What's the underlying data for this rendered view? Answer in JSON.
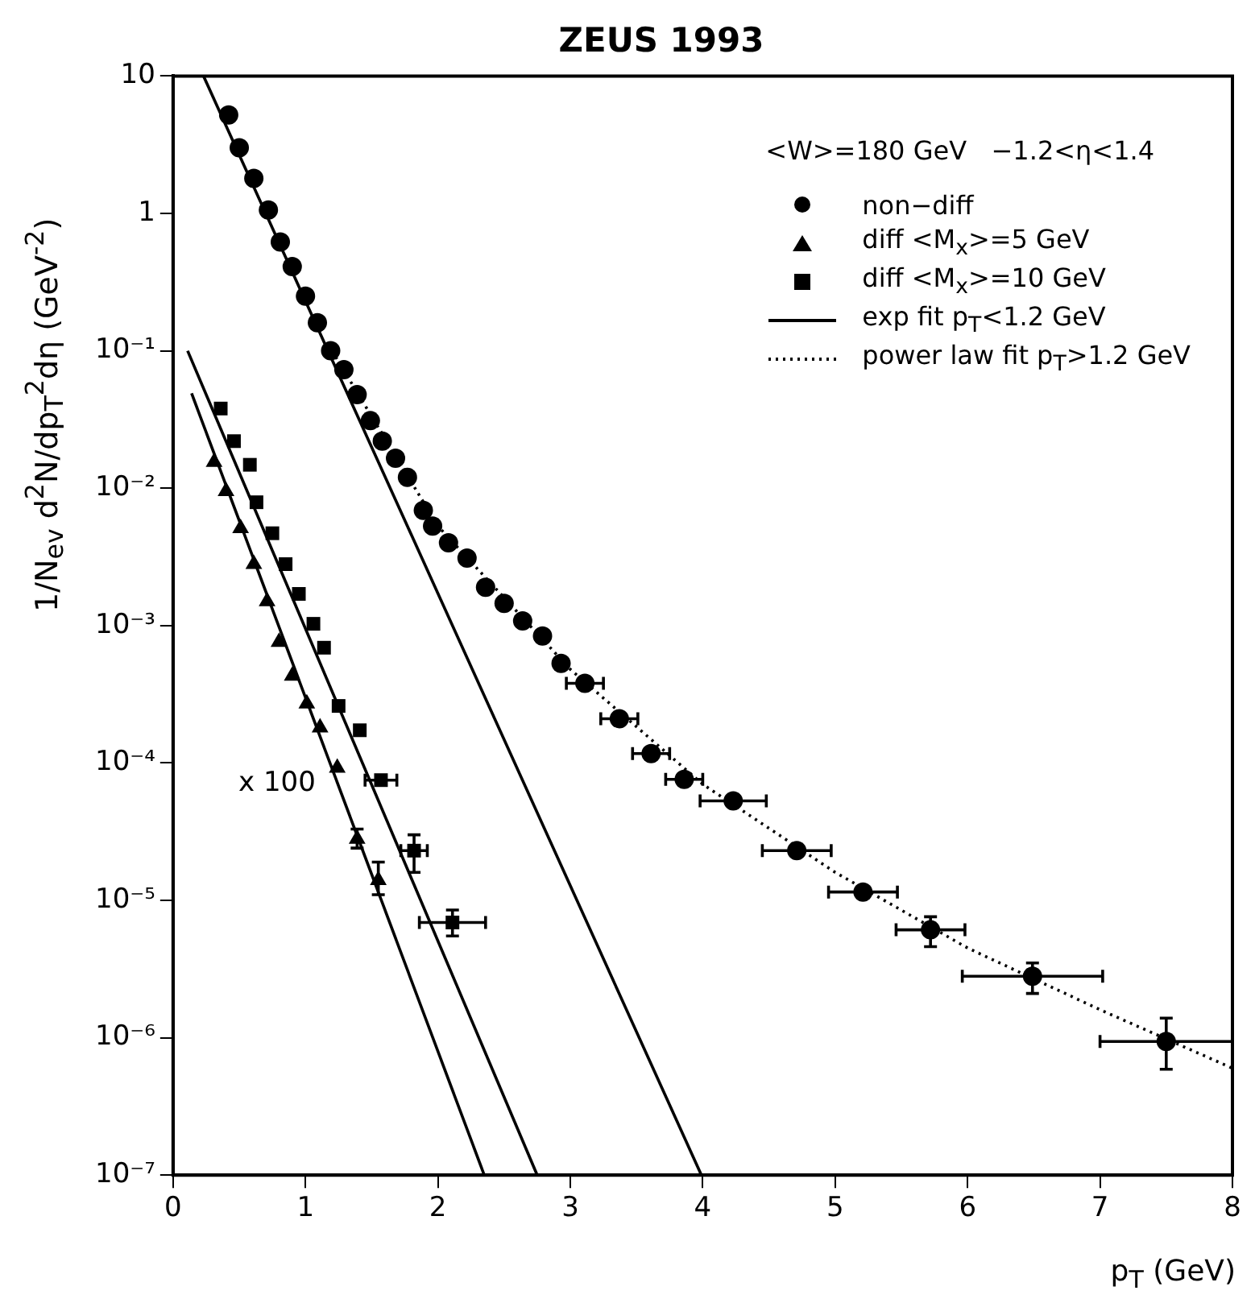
{
  "chart_data": {
    "type": "scatter",
    "title": "ZEUS 1993",
    "xlabel": "p$_{T}$ (GeV)",
    "ylabel": "1/N$_{ev}$ d$^{2}$N/dp$_{T}$$^{2}$dη (GeV$^{-2}$)",
    "annotations": [
      "<W>=180 GeV   −1.2<η<1.4",
      "x 100"
    ],
    "log": "y",
    "grid": false,
    "legend": "top right",
    "xlim": [
      0,
      8
    ],
    "xticks": [
      0,
      1,
      2,
      3,
      4,
      5,
      6,
      7,
      8
    ],
    "ylim": [
      1e-07,
      10
    ],
    "yticks": [
      {
        "value": 1e-07,
        "label": "10⁻⁷"
      },
      {
        "value": 1e-06,
        "label": "10⁻⁶"
      },
      {
        "value": 1e-05,
        "label": "10⁻⁵"
      },
      {
        "value": 0.0001,
        "label": "10⁻⁴"
      },
      {
        "value": 0.001,
        "label": "10⁻³"
      },
      {
        "value": 0.01,
        "label": "10⁻²"
      },
      {
        "value": 0.1,
        "label": "10⁻¹"
      },
      1,
      10
    ],
    "series": [
      {
        "name": "non−diff",
        "type": "scatter",
        "marker": "circle",
        "color": "#000000",
        "x": [
          0.42,
          0.5,
          0.61,
          0.72,
          0.81,
          0.9,
          1.0,
          1.09,
          1.19,
          1.29,
          1.39,
          1.49,
          1.58,
          1.68,
          1.77,
          1.89,
          1.96,
          2.08,
          2.22,
          2.36,
          2.5,
          2.64,
          2.79,
          2.93,
          3.11,
          3.37,
          3.61,
          3.86,
          4.23,
          4.71,
          5.21,
          5.72,
          6.49,
          7.5
        ],
        "values": [
          5.2,
          3.0,
          1.8,
          1.06,
          0.62,
          0.41,
          0.25,
          0.16,
          0.1,
          0.073,
          0.048,
          0.031,
          0.022,
          0.0165,
          0.012,
          0.0069,
          0.0053,
          0.004,
          0.0031,
          0.0019,
          0.00145,
          0.00108,
          0.00084,
          0.00053,
          0.00038,
          0.00021,
          0.000117,
          7.6e-05,
          5.3e-05,
          2.3e-05,
          1.15e-05,
          6.1e-06,
          2.8e-06,
          9.4e-07
        ],
        "xerrors": [
          null,
          null,
          null,
          null,
          null,
          null,
          null,
          null,
          null,
          null,
          null,
          null,
          null,
          null,
          null,
          null,
          null,
          null,
          null,
          null,
          null,
          null,
          null,
          null,
          0.14,
          0.14,
          0.14,
          0.14,
          0.25,
          0.26,
          0.26,
          0.26,
          0.53,
          0.5
        ],
        "errors": [
          null,
          null,
          null,
          null,
          null,
          null,
          null,
          null,
          null,
          null,
          null,
          null,
          null,
          null,
          null,
          null,
          null,
          null,
          null,
          null,
          null,
          null,
          null,
          null,
          null,
          null,
          null,
          null,
          null,
          null,
          null,
          [
            4.6e-06,
            7.6e-06
          ],
          [
            2.1e-06,
            3.5e-06
          ],
          [
            5.9e-07,
            1.39e-06
          ]
        ]
      },
      {
        "name": "diff <M$_{x}$>=5 GeV",
        "type": "scatter",
        "marker": "triangle",
        "color": "#000000",
        "x": [
          0.31,
          0.4,
          0.51,
          0.61,
          0.71,
          0.8,
          0.9,
          1.01,
          1.11,
          1.24,
          1.39,
          1.55
        ],
        "values": [
          0.0155,
          0.0095,
          0.0051,
          0.0028,
          0.0015,
          0.00076,
          0.00043,
          0.00027,
          0.000181,
          9.2e-05,
          2.8e-05,
          1.4e-05
        ],
        "errors": [
          null,
          null,
          null,
          null,
          null,
          null,
          null,
          null,
          null,
          null,
          [
            2.4e-05,
            3.3e-05
          ],
          [
            1.1e-05,
            1.9e-05
          ]
        ]
      },
      {
        "name": "diff <M$_{x}$>=10 GeV",
        "type": "scatter",
        "marker": "square",
        "color": "#000000",
        "x": [
          0.36,
          0.46,
          0.58,
          0.63,
          0.75,
          0.85,
          0.95,
          1.06,
          1.14,
          1.25,
          1.41,
          1.57,
          1.82,
          2.11
        ],
        "values": [
          0.038,
          0.022,
          0.0148,
          0.0079,
          0.0047,
          0.0028,
          0.0017,
          0.00103,
          0.00069,
          0.00026,
          0.000173,
          7.5e-05,
          2.3e-05,
          6.9e-06
        ],
        "xerrors": [
          null,
          null,
          null,
          null,
          null,
          null,
          null,
          null,
          null,
          null,
          null,
          0.12,
          0.1,
          0.25
        ],
        "errors": [
          null,
          null,
          null,
          null,
          null,
          null,
          null,
          null,
          null,
          null,
          null,
          null,
          [
            1.6e-05,
            3e-05
          ],
          [
            5.5e-06,
            8.5e-06
          ]
        ]
      },
      {
        "name": "exp fit  p$_{T}$<1.2 GeV",
        "type": "line",
        "line_style": "solid",
        "color": "#000000",
        "x": [
          0.23,
          3.99
        ],
        "values": [
          10,
          1e-07
        ]
      },
      {
        "name": "power law fit  p$_{T}$>1.2 GeV",
        "type": "line",
        "line_style": "dotted",
        "color": "#000000",
        "x": [
          1.2,
          2,
          3,
          4,
          5,
          6,
          7,
          8
        ],
        "values": [
          0.1,
          0.0053,
          0.00048,
          7e-05,
          1.6e-05,
          4.5e-06,
          1.6e-06,
          6e-07
        ]
      },
      {
        "type": "line",
        "line_style": "solid",
        "color": "#000000",
        "x": [
          0.11,
          2.75
        ],
        "values": [
          0.1,
          1e-07
        ]
      },
      {
        "type": "line",
        "line_style": "solid",
        "color": "#000000",
        "x": [
          0.14,
          2.35
        ],
        "values": [
          0.049,
          1e-07
        ]
      }
    ]
  }
}
